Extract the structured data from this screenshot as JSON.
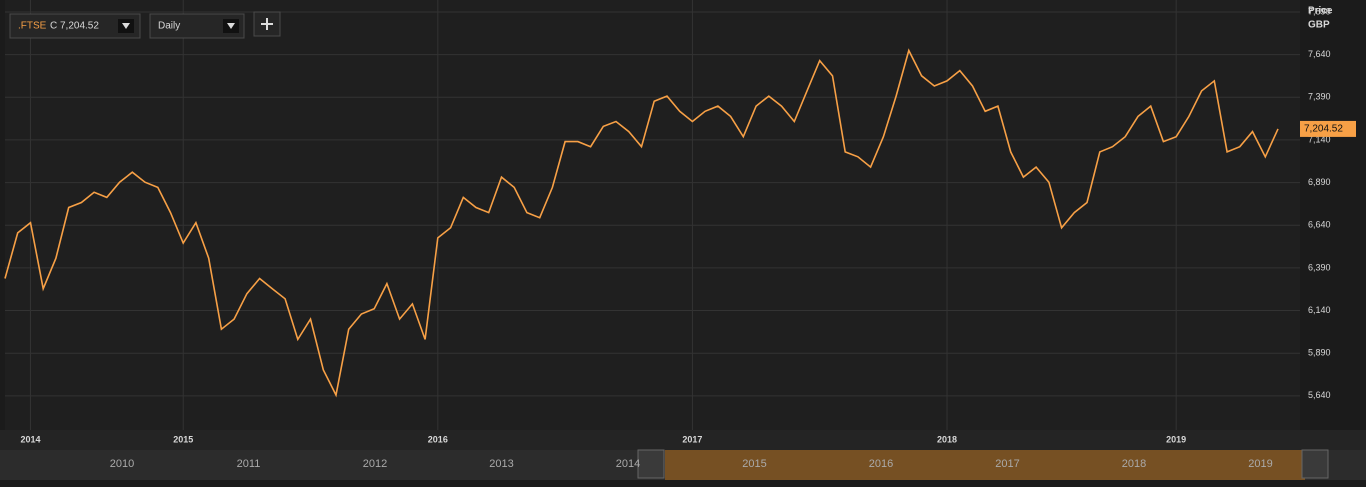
{
  "ui": {
    "symbol": ".FTSE",
    "quote": "C 7,204.52",
    "interval": "Daily"
  },
  "chart_data": {
    "type": "line",
    "y_label": "Price",
    "y_unit": "GBP",
    "categories": [
      null,
      null,
      "2014",
      null,
      null,
      null,
      null,
      null,
      null,
      null,
      null,
      null,
      null,
      null,
      "2015",
      null,
      null,
      null,
      null,
      null,
      null,
      null,
      null,
      null,
      null,
      null,
      null,
      null,
      null,
      null,
      null,
      null,
      null,
      null,
      "2016",
      null,
      null,
      null,
      null,
      null,
      null,
      null,
      null,
      null,
      null,
      null,
      null,
      null,
      null,
      null,
      null,
      null,
      null,
      null,
      "2017",
      null,
      null,
      null,
      null,
      null,
      null,
      null,
      null,
      null,
      null,
      null,
      null,
      null,
      null,
      null,
      null,
      null,
      null,
      null,
      "2018",
      null,
      null,
      null,
      null,
      null,
      null,
      null,
      null,
      null,
      null,
      null,
      null,
      null,
      null,
      null,
      null,
      null,
      "2019",
      null,
      null,
      null,
      null,
      null,
      null,
      null,
      null
    ],
    "values": [
      6328,
      6595,
      6655,
      6268,
      6447,
      6744,
      6773,
      6833,
      6803,
      6892,
      6951,
      6892,
      6862,
      6714,
      6536,
      6655,
      6447,
      6031,
      6090,
      6239,
      6328,
      6268,
      6209,
      5971,
      6090,
      5793,
      5645,
      6031,
      6120,
      6150,
      6298,
      6090,
      6179,
      5971,
      6566,
      6625,
      6803,
      6744,
      6714,
      6922,
      6862,
      6714,
      6684,
      6862,
      7130,
      7130,
      7100,
      7219,
      7248,
      7189,
      7100,
      7367,
      7397,
      7308,
      7248,
      7308,
      7338,
      7278,
      7159,
      7338,
      7397,
      7338,
      7248,
      7427,
      7605,
      7516,
      7070,
      7041,
      6981,
      7159,
      7397,
      7664,
      7516,
      7456,
      7486,
      7546,
      7456,
      7308,
      7338,
      7070,
      6922,
      6981,
      6892,
      6625,
      6714,
      6773,
      7070,
      7100,
      7159,
      7278,
      7338,
      7130,
      7159,
      7278,
      7427,
      7486,
      7070,
      7100,
      7189,
      7041,
      7204.52
    ],
    "color": "#f7a046",
    "price_tag": "7,204.52",
    "ylim": [
      5440,
      7960
    ],
    "yticks": [
      {
        "value": 5640,
        "label": "5,640"
      },
      {
        "value": 5890,
        "label": "5,890"
      },
      {
        "value": 6140,
        "label": "6,140"
      },
      {
        "value": 6390,
        "label": "6,390"
      },
      {
        "value": 6640,
        "label": "6,640"
      },
      {
        "value": 6890,
        "label": "6,890"
      },
      {
        "value": 7140,
        "label": "7,140"
      },
      {
        "value": 7390,
        "label": "7,390"
      },
      {
        "value": 7640,
        "label": "7,640"
      },
      {
        "value": 7890,
        "label": "7,890"
      }
    ],
    "grid": true
  },
  "navigator": {
    "labels": [
      "2010",
      "2011",
      "2012",
      "2013",
      "2014",
      "2015",
      "2016",
      "2017",
      "2018",
      "2019"
    ]
  }
}
